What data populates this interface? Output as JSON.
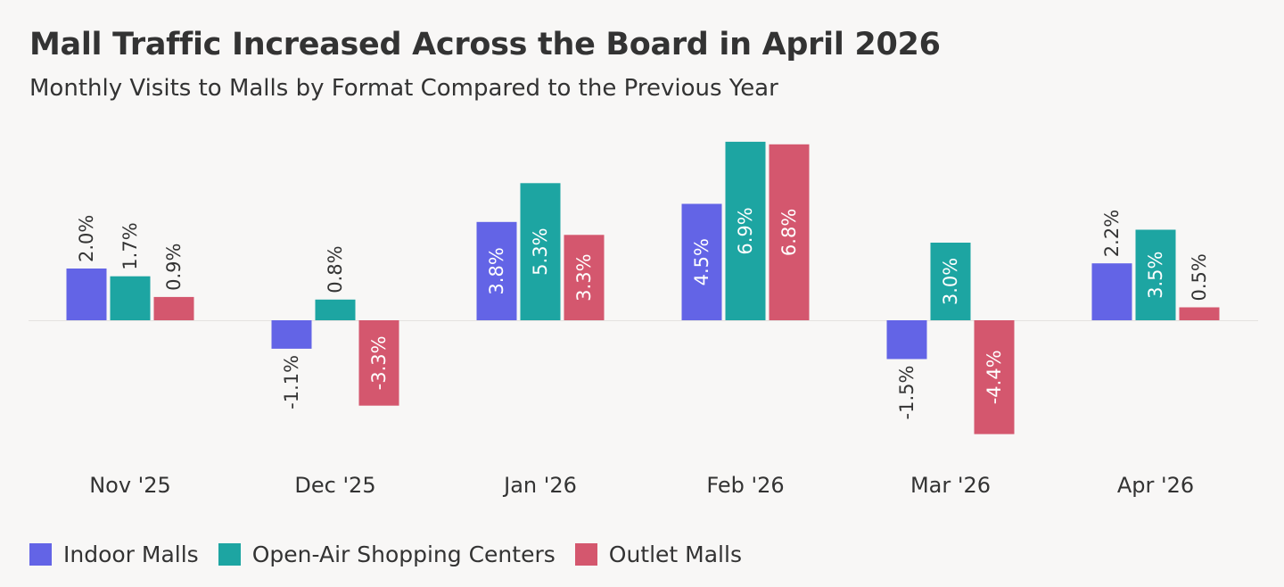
{
  "header": {
    "title": "Mall Traffic Increased Across the Board in April 2026",
    "subtitle": "Monthly Visits to Malls by Format Compared to the Previous Year"
  },
  "chart_data": {
    "type": "bar",
    "title": "Mall Traffic Increased Across the Board in April 2026",
    "subtitle": "Monthly Visits to Malls by Format Compared to the Previous Year",
    "categories": [
      "Nov '25",
      "Dec '25",
      "Jan '26",
      "Feb '26",
      "Mar '26",
      "Apr '26"
    ],
    "series": [
      {
        "name": "Indoor Malls",
        "color": "#6364e6",
        "values": [
          2.0,
          -1.1,
          3.8,
          4.5,
          -1.5,
          2.2
        ],
        "labels": [
          "2.0%",
          "-1.1%",
          "3.8%",
          "4.5%",
          "-1.5%",
          "2.2%"
        ]
      },
      {
        "name": "Open-Air Shopping Centers",
        "color": "#1da5a2",
        "values": [
          1.7,
          0.8,
          5.3,
          6.9,
          3.0,
          3.5
        ],
        "labels": [
          "1.7%",
          "0.8%",
          "5.3%",
          "6.9%",
          "3.0%",
          "3.5%"
        ]
      },
      {
        "name": "Outlet Malls",
        "color": "#d4576e",
        "values": [
          0.9,
          -3.3,
          3.3,
          6.8,
          -4.4,
          0.5
        ],
        "labels": [
          "0.9%",
          "-3.3%",
          "3.3%",
          "6.8%",
          "-4.4%",
          "0.5%"
        ]
      }
    ],
    "xlabel": "",
    "ylabel": "",
    "ylim": [
      -4.4,
      6.9
    ],
    "grid": false,
    "legend_position": "bottom-left",
    "baseline_color": "#e4e2e0"
  }
}
